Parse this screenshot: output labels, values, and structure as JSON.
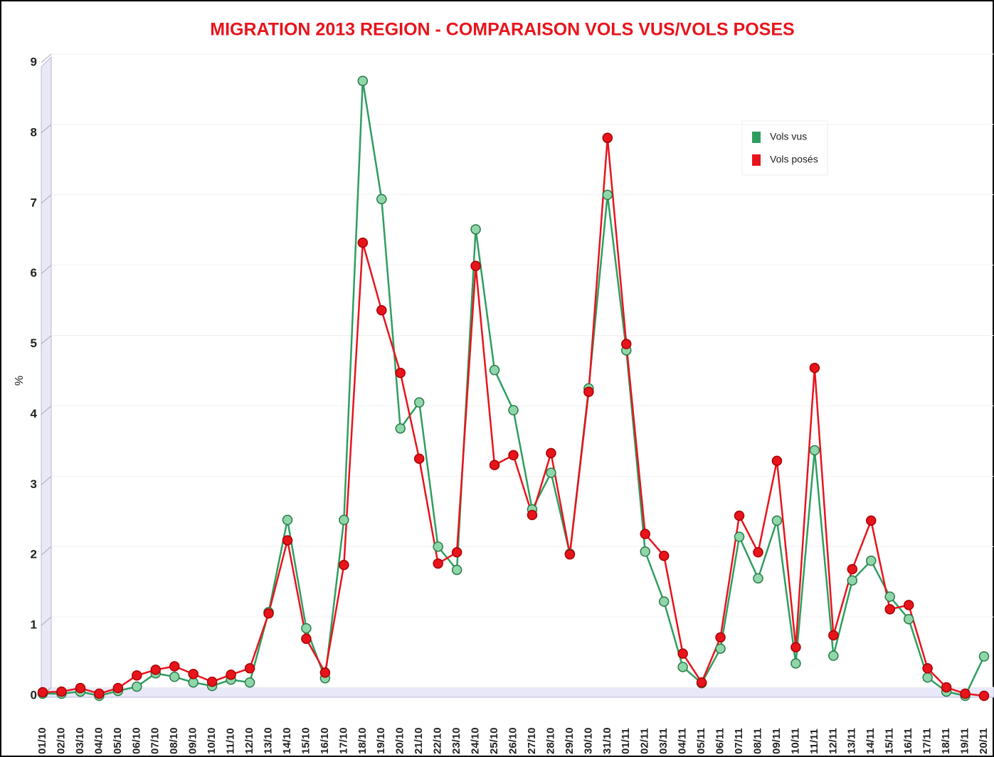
{
  "chart_data": {
    "type": "line",
    "title": "MIGRATION 2013 REGION - COMPARAISON VOLS VUS/VOLS POSES",
    "y_label": "%",
    "categories": [
      "01/10",
      "02/10",
      "03/10",
      "04/10",
      "05/10",
      "06/10",
      "07/10",
      "08/10",
      "09/10",
      "10/10",
      "11/10",
      "12/10",
      "13/10",
      "14/10",
      "15/10",
      "16/10",
      "17/10",
      "18/10",
      "19/10",
      "20/10",
      "21/10",
      "22/10",
      "23/10",
      "24/10",
      "25/10",
      "26/10",
      "27/10",
      "28/10",
      "29/10",
      "30/10",
      "31/10",
      "01/11",
      "02/11",
      "03/11",
      "04/11",
      "05/11",
      "06/11",
      "07/11",
      "08/11",
      "09/11",
      "10/11",
      "11/11",
      "12/11",
      "13/11",
      "14/11",
      "15/11",
      "16/11",
      "17/11",
      "18/11",
      "19/11",
      "20/11"
    ],
    "series": [
      {
        "name": "Vols vus",
        "color": "#2e9e60",
        "values": [
          0.03,
          0.03,
          0.06,
          0.0,
          0.07,
          0.13,
          0.32,
          0.27,
          0.19,
          0.14,
          0.23,
          0.19,
          1.19,
          2.5,
          0.96,
          0.25,
          2.5,
          8.74,
          7.06,
          3.8,
          4.17,
          2.12,
          1.79,
          6.63,
          4.63,
          4.06,
          2.65,
          3.17,
          2.02,
          4.37,
          7.12,
          4.91,
          2.05,
          1.34,
          0.41,
          0.18,
          0.67,
          2.26,
          1.67,
          2.49,
          0.46,
          3.49,
          0.57,
          1.64,
          1.92,
          1.41,
          1.09,
          0.26,
          0.06,
          0.0,
          0.56
        ]
      },
      {
        "name": "Vols posés",
        "color": "#e8141c",
        "values": [
          0.05,
          0.06,
          0.11,
          0.03,
          0.11,
          0.29,
          0.37,
          0.42,
          0.31,
          0.2,
          0.3,
          0.39,
          1.17,
          2.21,
          0.81,
          0.33,
          1.86,
          6.44,
          5.48,
          4.59,
          3.37,
          1.88,
          2.04,
          6.11,
          3.28,
          3.42,
          2.57,
          3.45,
          2.01,
          4.32,
          7.93,
          5.0,
          2.3,
          1.99,
          0.6,
          0.19,
          0.83,
          2.56,
          2.04,
          3.34,
          0.69,
          4.66,
          0.86,
          1.8,
          2.49,
          1.23,
          1.29,
          0.39,
          0.12,
          0.03,
          0.0
        ]
      }
    ],
    "ylim": [
      0,
      9
    ],
    "yticks": [
      0,
      1,
      2,
      3,
      4,
      5,
      6,
      7,
      8,
      9
    ],
    "grid": true,
    "legend": "upper right"
  }
}
